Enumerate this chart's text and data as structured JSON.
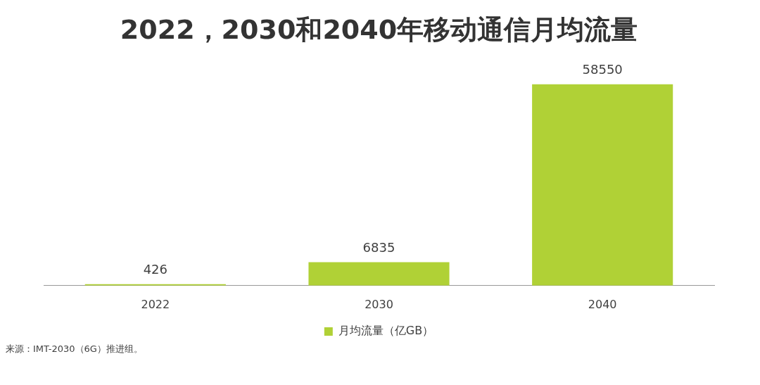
{
  "chart_data": {
    "type": "bar",
    "title": "2022，2030和2040年移动通信月均流量",
    "categories": [
      "2022",
      "2030",
      "2040"
    ],
    "series": [
      {
        "name": "月均流量（亿GB）",
        "color": "#b0d136",
        "values": [
          426,
          6835,
          58550
        ]
      }
    ],
    "data_labels": true,
    "grid": false,
    "legend": "bottom",
    "annotations": [
      "来源：IMT-2030（6G）推进组。"
    ]
  }
}
